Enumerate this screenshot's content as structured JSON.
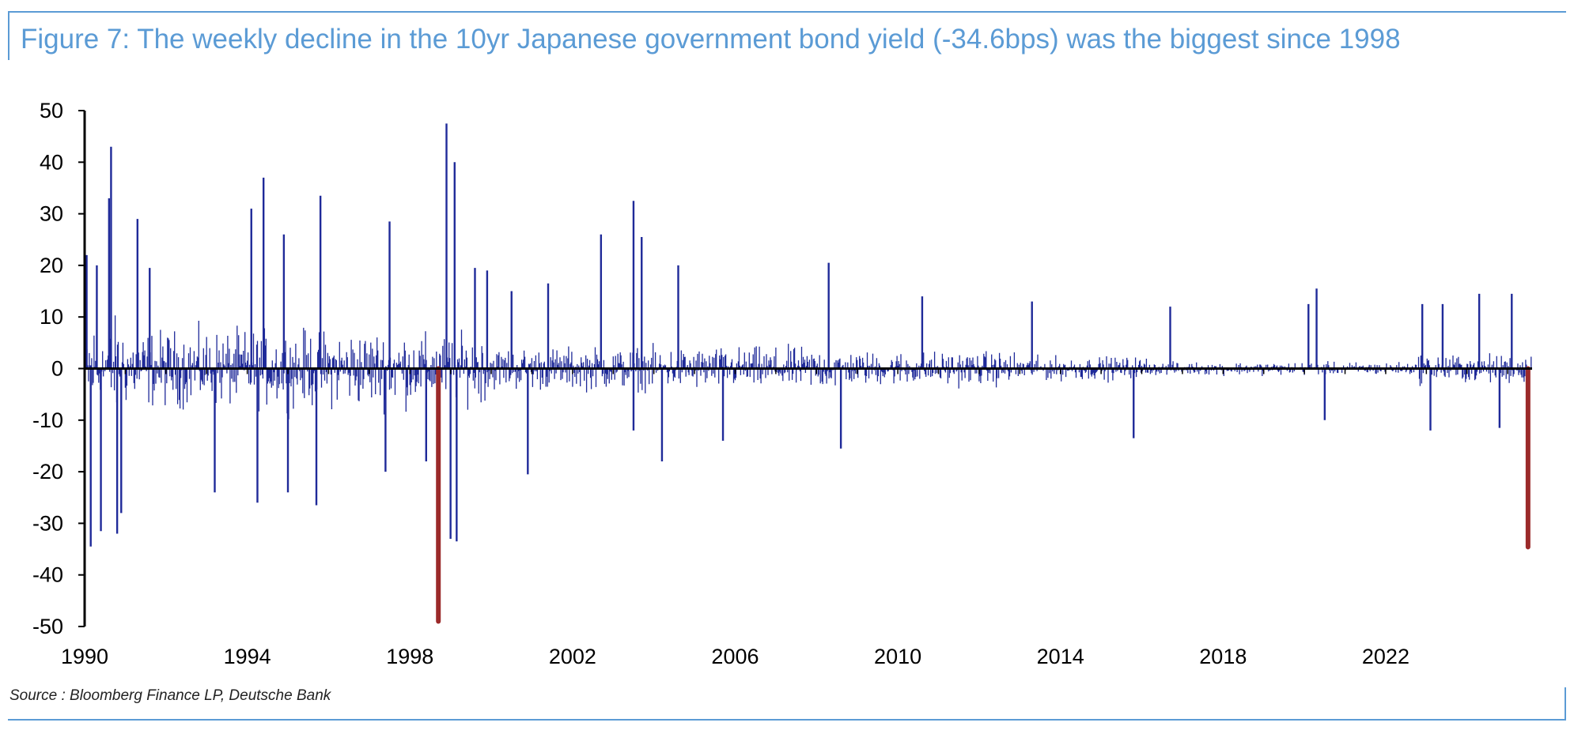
{
  "title": "Figure 7: The weekly decline in the 10yr Japanese government bond yield (-34.6bps) was the biggest since 1998",
  "source": "Source : Bloomberg Finance LP, Deutsche Bank",
  "colors": {
    "bars": "#1f2a99",
    "highlight": "#9b2a2a",
    "title": "#5b9bd5",
    "axis": "#000000"
  },
  "chart_data": {
    "type": "bar",
    "title": "Figure 7: The weekly decline in the 10yr Japanese government bond yield (-34.6bps) was the biggest since 1998",
    "xlabel": "",
    "ylabel": "",
    "x_range": [
      1990,
      2025.6
    ],
    "ylim": [
      -50,
      50
    ],
    "y_ticks": [
      50,
      40,
      30,
      20,
      10,
      0,
      -10,
      -20,
      -30,
      -40,
      -50
    ],
    "x_ticks": [
      1990,
      1994,
      1998,
      2002,
      2006,
      2010,
      2014,
      2018,
      2022
    ],
    "grid": false,
    "legend": "none",
    "series": [
      {
        "values_by_regime_note": "",
        "regimes": [
          {
            "start": 1990.0,
            "end": 1991.0,
            "amp": 12
          },
          {
            "start": 1991.0,
            "end": 1998.0,
            "amp": 9
          },
          {
            "start": 1998.0,
            "end": 2000.0,
            "amp": 8
          },
          {
            "start": 2000.0,
            "end": 2008.5,
            "amp": 5
          },
          {
            "start": 2008.5,
            "end": 2013.0,
            "amp": 4
          },
          {
            "start": 2013.0,
            "end": 2016.2,
            "amp": 2.8
          },
          {
            "start": 2016.2,
            "end": 2022.8,
            "amp": 1.5
          },
          {
            "start": 2022.8,
            "end": 2025.6,
            "amp": 3.5
          }
        ],
        "spikes": [
          {
            "x": 1990.05,
            "y": 22
          },
          {
            "x": 1990.15,
            "y": -34.5
          },
          {
            "x": 1990.3,
            "y": 20
          },
          {
            "x": 1990.4,
            "y": -31.5
          },
          {
            "x": 1990.6,
            "y": 33
          },
          {
            "x": 1990.65,
            "y": 43
          },
          {
            "x": 1990.8,
            "y": -32
          },
          {
            "x": 1990.9,
            "y": -28
          },
          {
            "x": 1991.3,
            "y": 29
          },
          {
            "x": 1991.6,
            "y": 19.5
          },
          {
            "x": 1993.2,
            "y": -24
          },
          {
            "x": 1994.1,
            "y": 31
          },
          {
            "x": 1994.25,
            "y": -26
          },
          {
            "x": 1994.4,
            "y": 37
          },
          {
            "x": 1994.9,
            "y": 26
          },
          {
            "x": 1995.0,
            "y": -24
          },
          {
            "x": 1995.7,
            "y": -26.5
          },
          {
            "x": 1995.8,
            "y": 33.5
          },
          {
            "x": 1997.5,
            "y": 28.5
          },
          {
            "x": 1997.4,
            "y": -20
          },
          {
            "x": 1998.4,
            "y": -18
          },
          {
            "x": 1998.9,
            "y": 47.5
          },
          {
            "x": 1999.0,
            "y": -33
          },
          {
            "x": 1999.1,
            "y": 40
          },
          {
            "x": 1999.15,
            "y": -33.5
          },
          {
            "x": 1999.6,
            "y": 19.5
          },
          {
            "x": 1999.9,
            "y": 19
          },
          {
            "x": 2000.5,
            "y": 15
          },
          {
            "x": 2000.9,
            "y": -20.5
          },
          {
            "x": 2001.4,
            "y": 16.5
          },
          {
            "x": 2002.7,
            "y": 26
          },
          {
            "x": 2003.5,
            "y": 32.5
          },
          {
            "x": 2003.7,
            "y": 25.5
          },
          {
            "x": 2003.5,
            "y": -12
          },
          {
            "x": 2004.2,
            "y": -18
          },
          {
            "x": 2004.6,
            "y": 20
          },
          {
            "x": 2005.7,
            "y": -14
          },
          {
            "x": 2008.3,
            "y": 20.5
          },
          {
            "x": 2008.6,
            "y": -15.5
          },
          {
            "x": 2010.6,
            "y": 14
          },
          {
            "x": 2013.3,
            "y": 13
          },
          {
            "x": 2015.8,
            "y": -13.5
          },
          {
            "x": 2016.7,
            "y": 12
          },
          {
            "x": 2020.1,
            "y": 12.5
          },
          {
            "x": 2020.3,
            "y": 15.5
          },
          {
            "x": 2020.5,
            "y": -10
          },
          {
            "x": 2022.9,
            "y": 12.5
          },
          {
            "x": 2023.1,
            "y": -12
          },
          {
            "x": 2023.4,
            "y": 12.5
          },
          {
            "x": 2024.3,
            "y": 14.5
          },
          {
            "x": 2024.8,
            "y": -11.5
          },
          {
            "x": 2025.1,
            "y": 14.5
          }
        ]
      }
    ],
    "highlighted_bars": [
      {
        "x": 1998.7,
        "y": -49
      },
      {
        "x": 2025.5,
        "y": -34.6
      }
    ]
  }
}
